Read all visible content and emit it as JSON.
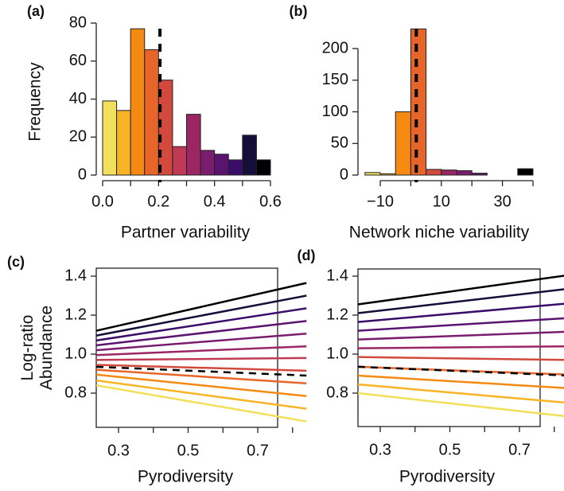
{
  "palette": [
    "#F2DF5A",
    "#F8B422",
    "#F58A12",
    "#E8652A",
    "#D24A3E",
    "#BF3A54",
    "#9C2663",
    "#7A1D6E",
    "#5A1470",
    "#3B0D6A",
    "#150E38",
    "#000004"
  ],
  "chart_data": [
    {
      "id": "a",
      "panel_label": "(a)",
      "type": "bar",
      "xlabel": "Partner variability",
      "ylabel": "Frequency",
      "xlim": [
        0,
        0.6
      ],
      "ylim": [
        0,
        80
      ],
      "bin_width": 0.05,
      "bin_start": 0,
      "values": [
        39,
        34,
        77,
        66,
        50,
        15,
        32,
        13,
        11,
        8,
        21,
        8
      ],
      "xticks": [
        0,
        0.1,
        0.2,
        0.3,
        0.4,
        0.5,
        0.6
      ],
      "xtick_labels": [
        "0.0",
        "",
        "0.2",
        "",
        "0.4",
        "",
        "0.6"
      ],
      "yticks": [
        0,
        20,
        40,
        60,
        80
      ],
      "ytick_labels": [
        "0",
        "20",
        "40",
        "60",
        "80"
      ],
      "mean_line": 0.205
    },
    {
      "id": "b",
      "panel_label": "(b)",
      "type": "bar",
      "xlabel": "Network niche variability",
      "ylabel": "",
      "xlim": [
        -10,
        40
      ],
      "ylim": [
        0,
        200
      ],
      "bin_width": 5,
      "bin_start": -15,
      "values": [
        4,
        2,
        100,
        231,
        9,
        8,
        7,
        3,
        0,
        0,
        10
      ],
      "xticks": [
        -10,
        0,
        10,
        20,
        30,
        40
      ],
      "xtick_labels": [
        "−10",
        "",
        "10",
        "",
        "30",
        ""
      ],
      "yticks": [
        0,
        50,
        100,
        150,
        200
      ],
      "ytick_labels": [
        "0",
        "50",
        "100",
        "150",
        "200"
      ],
      "mean_line": 1.8
    },
    {
      "id": "c",
      "panel_label": "(c)",
      "type": "line",
      "xlabel": "Pyrodiversity",
      "ylabel": "Log-ratio Abundance",
      "ylabel_lines": [
        "Log-ratio",
        "Abundance"
      ],
      "x_range": [
        0.236,
        0.84
      ],
      "xticks": [
        0.3,
        0.4,
        0.5,
        0.6,
        0.7,
        0.8
      ],
      "xtick_labels": [
        "0.3",
        "",
        "0.5",
        "",
        "0.7",
        ""
      ],
      "yticks": [
        0.8,
        1.0,
        1.2,
        1.4
      ],
      "ytick_labels": [
        "0.8",
        "1.0",
        "1.2",
        "1.4"
      ],
      "series": [
        {
          "y": [
            0.84,
            0.655
          ]
        },
        {
          "y": [
            0.865,
            0.72
          ]
        },
        {
          "y": [
            0.895,
            0.785
          ]
        },
        {
          "y": [
            0.92,
            0.85
          ]
        },
        {
          "y": [
            0.945,
            0.915
          ]
        },
        {
          "y": [
            0.97,
            0.98
          ]
        },
        {
          "y": [
            0.995,
            1.04
          ]
        },
        {
          "y": [
            1.02,
            1.105
          ]
        },
        {
          "y": [
            1.045,
            1.17
          ]
        },
        {
          "y": [
            1.07,
            1.235
          ]
        },
        {
          "y": [
            1.095,
            1.3
          ]
        },
        {
          "y": [
            1.12,
            1.365
          ]
        }
      ],
      "mean_series": {
        "y": [
          0.935,
          0.89
        ]
      }
    },
    {
      "id": "d",
      "panel_label": "(d)",
      "type": "line",
      "xlabel": "Pyrodiversity",
      "ylabel": "",
      "x_range": [
        0.236,
        0.84
      ],
      "xticks": [
        0.3,
        0.4,
        0.5,
        0.6,
        0.7,
        0.8
      ],
      "xtick_labels": [
        "0.3",
        "",
        "0.5",
        "",
        "0.7",
        ""
      ],
      "yticks": [
        0.8,
        1.0,
        1.2,
        1.4
      ],
      "ytick_labels": [
        "0.8",
        "1.0",
        "1.2",
        "1.4"
      ],
      "series": [
        {
          "y": [
            0.8,
            0.68
          ]
        },
        {
          "y": [
            0.845,
            0.75
          ]
        },
        {
          "y": [
            0.89,
            0.825
          ]
        },
        {
          "y": [
            0.935,
            0.895
          ]
        },
        {
          "y": [
            0.985,
            0.97
          ]
        },
        {
          "y": [
            1.03,
            1.04
          ]
        },
        {
          "y": [
            1.075,
            1.115
          ]
        },
        {
          "y": [
            1.12,
            1.185
          ]
        },
        {
          "y": [
            1.165,
            1.26
          ]
        },
        {
          "y": [
            1.21,
            1.335
          ]
        },
        {
          "y": [
            1.255,
            1.405
          ]
        }
      ],
      "mean_series": {
        "y": [
          0.935,
          0.89
        ]
      }
    }
  ]
}
